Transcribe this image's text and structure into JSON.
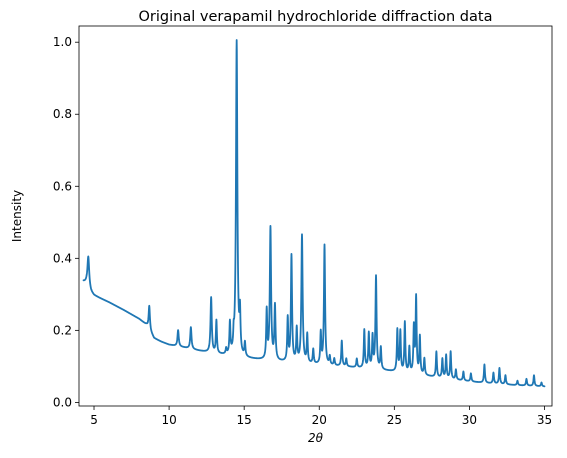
{
  "chart_data": {
    "type": "line",
    "title": "Original verapamil hydrochloride diffraction data",
    "xlabel": "2θ",
    "ylabel": "Intensity",
    "xlim": [
      4.0,
      35.5
    ],
    "ylim": [
      -0.01,
      1.045
    ],
    "xticks": [
      5,
      10,
      15,
      20,
      25,
      30,
      35
    ],
    "xtick_labels": [
      "5",
      "10",
      "15",
      "20",
      "25",
      "30",
      "35"
    ],
    "yticks": [
      0.0,
      0.2,
      0.4,
      0.6,
      0.8,
      1.0
    ],
    "ytick_labels": [
      "0.0",
      "0.2",
      "0.4",
      "0.6",
      "0.8",
      "1.0"
    ],
    "grid": false,
    "legend": "none",
    "line_color": "#1f77b4",
    "series": [
      {
        "x_range": [
          4.3,
          35.0
        ],
        "baseline": [
          [
            4.3,
            0.335
          ],
          [
            4.5,
            0.33
          ],
          [
            4.8,
            0.305
          ],
          [
            5.0,
            0.297
          ],
          [
            6.0,
            0.278
          ],
          [
            7.0,
            0.256
          ],
          [
            8.0,
            0.232
          ],
          [
            8.5,
            0.215
          ],
          [
            9.0,
            0.178
          ],
          [
            9.5,
            0.168
          ],
          [
            10.0,
            0.16
          ],
          [
            11.0,
            0.152
          ],
          [
            12.0,
            0.143
          ],
          [
            13.0,
            0.135
          ],
          [
            14.0,
            0.128
          ],
          [
            15.0,
            0.122
          ],
          [
            16.0,
            0.118
          ],
          [
            17.0,
            0.114
          ],
          [
            18.0,
            0.11
          ],
          [
            19.0,
            0.107
          ],
          [
            20.0,
            0.104
          ],
          [
            21.0,
            0.101
          ],
          [
            22.0,
            0.098
          ],
          [
            23.0,
            0.094
          ],
          [
            24.0,
            0.09
          ],
          [
            25.0,
            0.085
          ],
          [
            26.0,
            0.079
          ],
          [
            27.0,
            0.074
          ],
          [
            28.0,
            0.068
          ],
          [
            29.0,
            0.063
          ],
          [
            30.0,
            0.058
          ],
          [
            31.0,
            0.054
          ],
          [
            32.0,
            0.051
          ],
          [
            33.0,
            0.048
          ],
          [
            34.0,
            0.046
          ],
          [
            35.0,
            0.044
          ]
        ],
        "peaks": [
          [
            4.62,
            0.405,
            0.07
          ],
          [
            8.68,
            0.268,
            0.05
          ],
          [
            10.6,
            0.2,
            0.05
          ],
          [
            11.45,
            0.208,
            0.05
          ],
          [
            12.8,
            0.29,
            0.05
          ],
          [
            13.15,
            0.225,
            0.04
          ],
          [
            13.8,
            0.145,
            0.04
          ],
          [
            14.05,
            0.215,
            0.04
          ],
          [
            14.3,
            0.165,
            0.03
          ],
          [
            14.5,
            1.0,
            0.055
          ],
          [
            14.72,
            0.232,
            0.04
          ],
          [
            15.05,
            0.16,
            0.04
          ],
          [
            16.5,
            0.25,
            0.04
          ],
          [
            16.75,
            0.482,
            0.05
          ],
          [
            17.05,
            0.264,
            0.045
          ],
          [
            17.9,
            0.23,
            0.04
          ],
          [
            18.15,
            0.405,
            0.045
          ],
          [
            18.5,
            0.2,
            0.04
          ],
          [
            18.85,
            0.462,
            0.05
          ],
          [
            19.2,
            0.185,
            0.04
          ],
          [
            19.6,
            0.145,
            0.04
          ],
          [
            20.1,
            0.19,
            0.04
          ],
          [
            20.35,
            0.435,
            0.045
          ],
          [
            20.7,
            0.125,
            0.04
          ],
          [
            21.0,
            0.12,
            0.04
          ],
          [
            21.5,
            0.17,
            0.04
          ],
          [
            21.8,
            0.12,
            0.04
          ],
          [
            22.5,
            0.12,
            0.04
          ],
          [
            23.0,
            0.2,
            0.04
          ],
          [
            23.3,
            0.19,
            0.04
          ],
          [
            23.55,
            0.18,
            0.04
          ],
          [
            23.78,
            0.348,
            0.045
          ],
          [
            24.1,
            0.15,
            0.04
          ],
          [
            25.2,
            0.2,
            0.04
          ],
          [
            25.4,
            0.195,
            0.04
          ],
          [
            25.7,
            0.22,
            0.04
          ],
          [
            26.0,
            0.15,
            0.04
          ],
          [
            26.3,
            0.205,
            0.04
          ],
          [
            26.45,
            0.288,
            0.04
          ],
          [
            26.7,
            0.18,
            0.04
          ],
          [
            27.0,
            0.12,
            0.04
          ],
          [
            27.8,
            0.14,
            0.04
          ],
          [
            28.2,
            0.12,
            0.04
          ],
          [
            28.45,
            0.13,
            0.04
          ],
          [
            28.75,
            0.14,
            0.04
          ],
          [
            29.1,
            0.09,
            0.04
          ],
          [
            29.6,
            0.085,
            0.04
          ],
          [
            30.1,
            0.08,
            0.04
          ],
          [
            31.0,
            0.105,
            0.04
          ],
          [
            31.6,
            0.082,
            0.04
          ],
          [
            32.0,
            0.095,
            0.04
          ],
          [
            32.4,
            0.075,
            0.04
          ],
          [
            33.2,
            0.06,
            0.04
          ],
          [
            33.8,
            0.065,
            0.04
          ],
          [
            34.3,
            0.075,
            0.04
          ],
          [
            34.8,
            0.055,
            0.04
          ]
        ]
      }
    ]
  }
}
